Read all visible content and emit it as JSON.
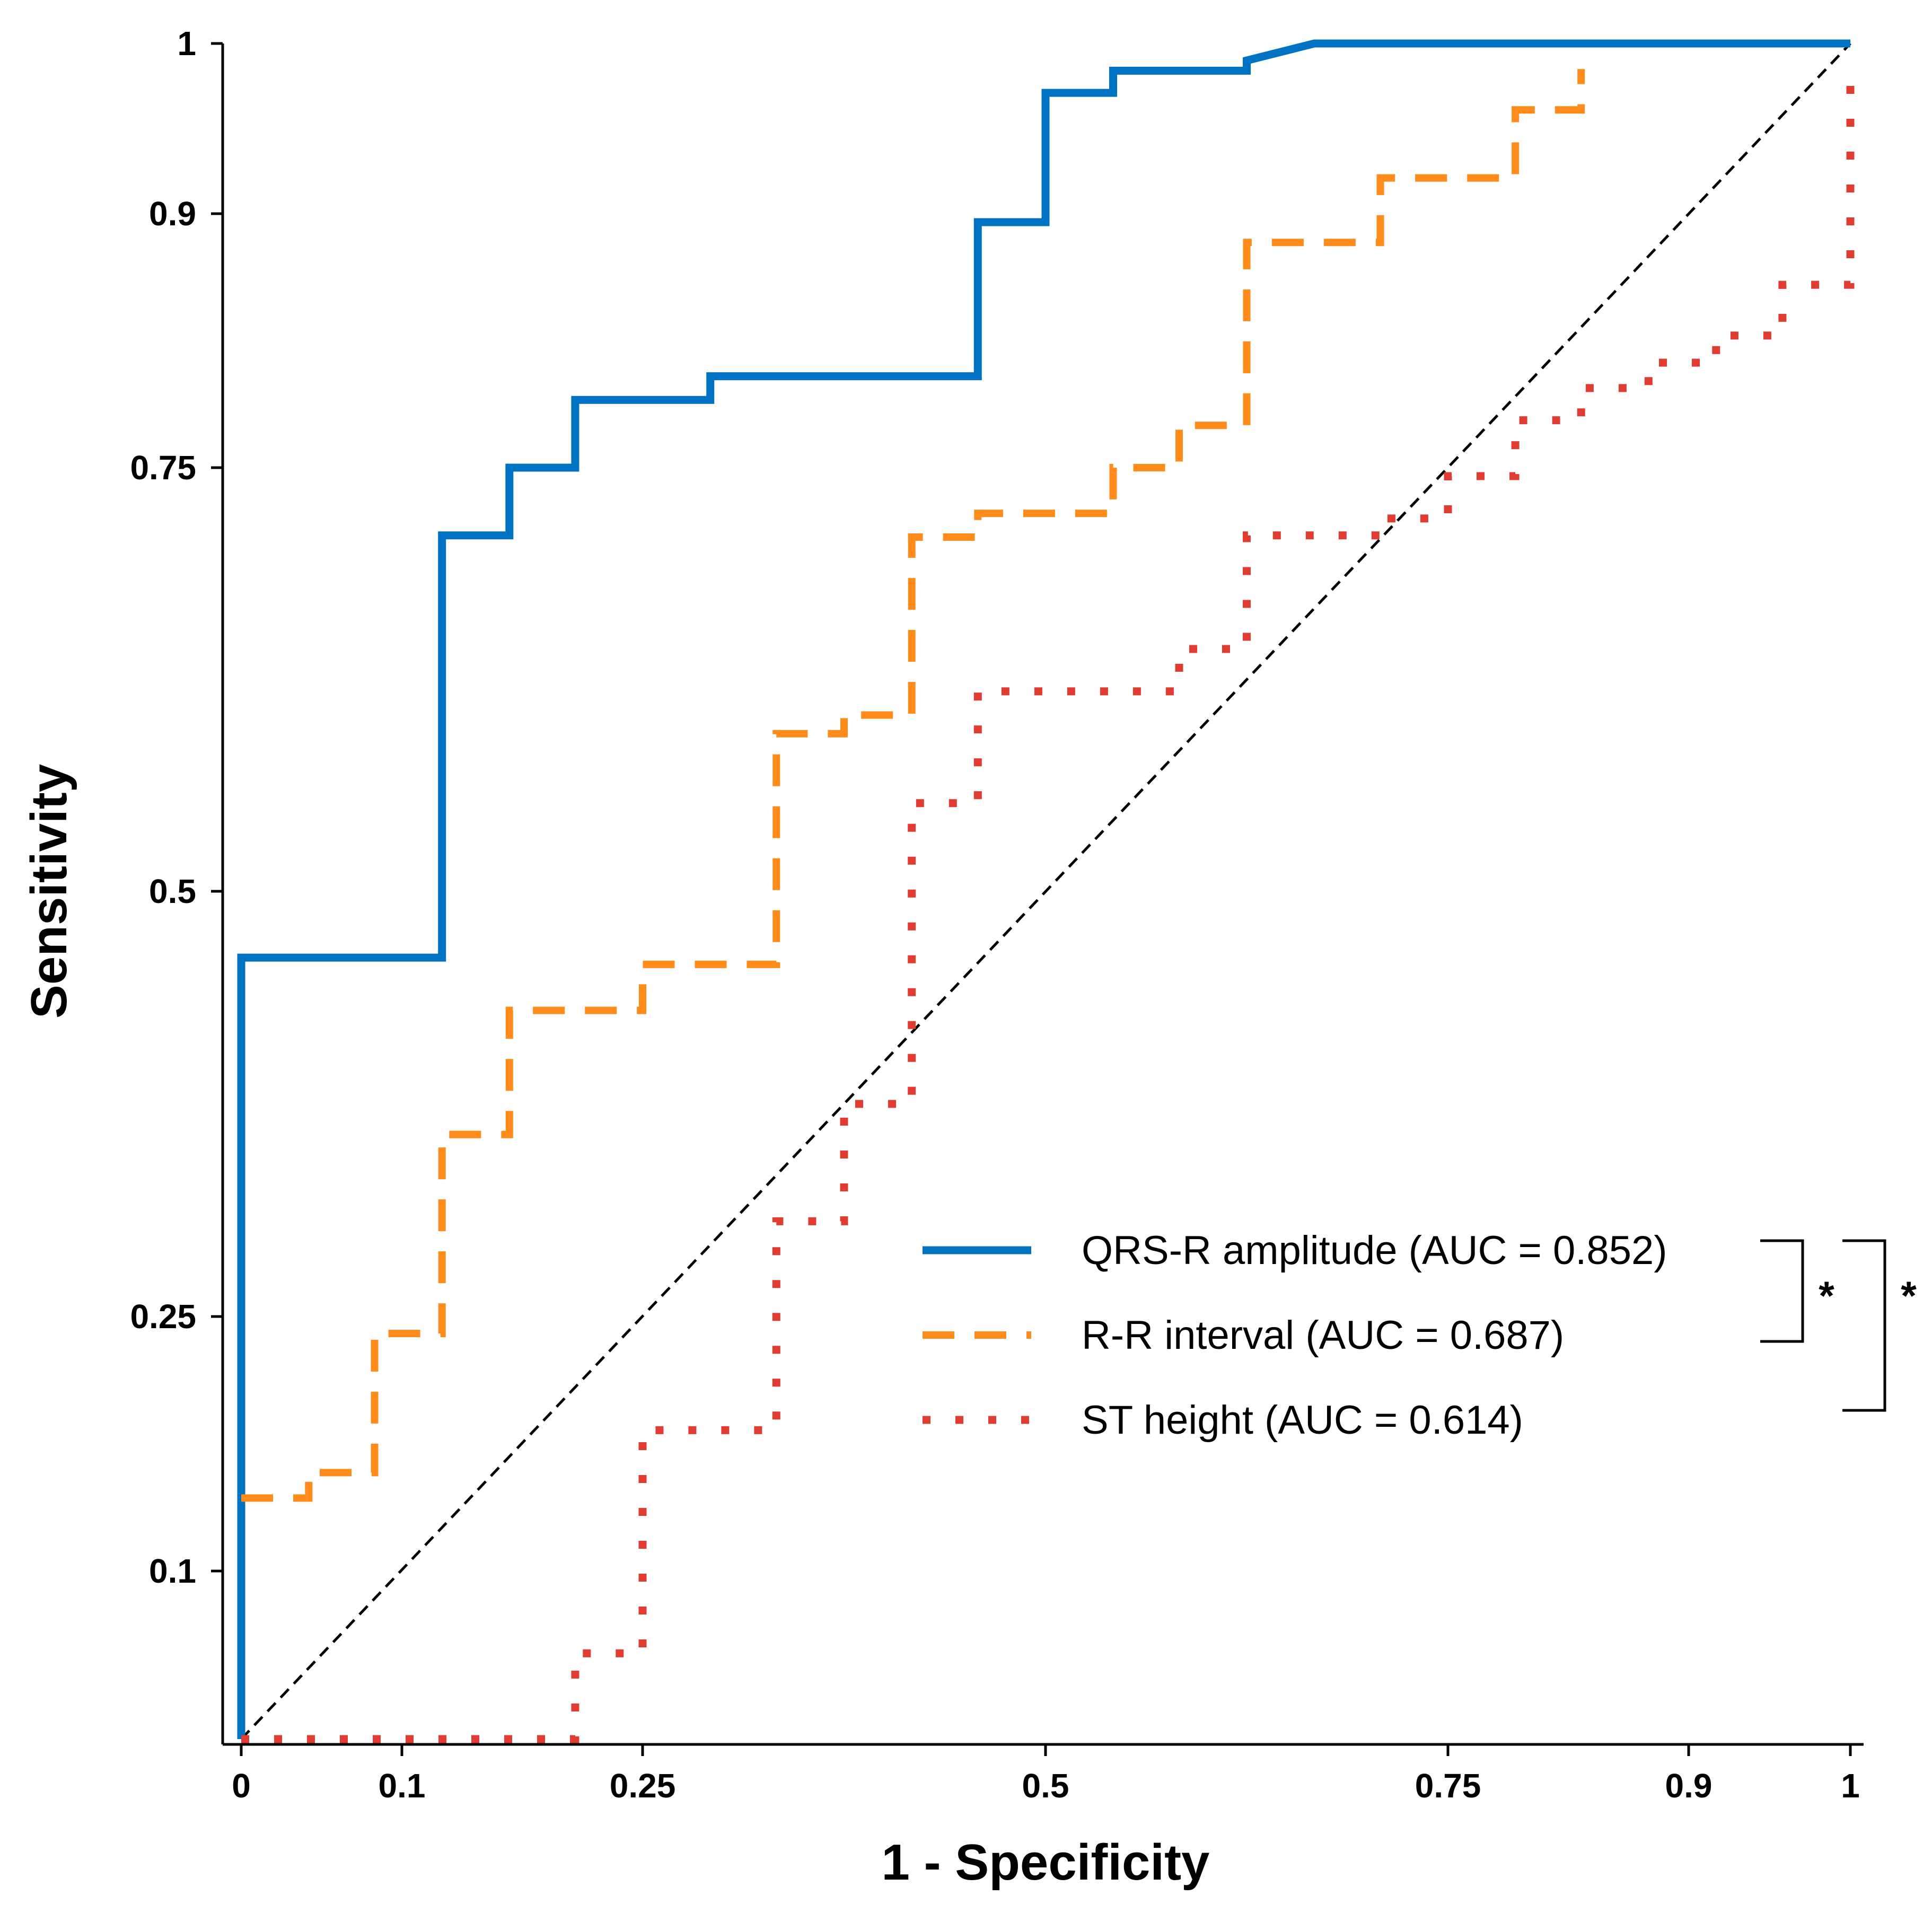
{
  "chart_data": {
    "type": "line",
    "title": "",
    "xlabel": "1 - Specificity",
    "ylabel": "Sensitivity",
    "xlim": [
      0,
      1
    ],
    "ylim": [
      0,
      1
    ],
    "xticks": [
      0,
      0.1,
      0.25,
      0.5,
      0.75,
      0.9,
      1
    ],
    "xtick_labels": [
      "0",
      "0.1",
      "0.25",
      "0.5",
      "0.75",
      "0.9",
      "1"
    ],
    "yticks": [
      0.1,
      0.25,
      0.5,
      0.75,
      0.9,
      1
    ],
    "ytick_labels": [
      "0.1",
      "0.25",
      "0.5",
      "0.75",
      "0.9",
      "1"
    ],
    "legend_position": "bottom-right",
    "series": [
      {
        "name": "QRS-R amplitude",
        "legend_label": "QRS-R amplitude",
        "auc_label": "(AUC = 0.852)",
        "auc": 0.852,
        "color": "#0072C2",
        "style": "solid",
        "points": [
          [
            0,
            0
          ],
          [
            0,
            0.461
          ],
          [
            0.125,
            0.461
          ],
          [
            0.125,
            0.71
          ],
          [
            0.167,
            0.71
          ],
          [
            0.167,
            0.75
          ],
          [
            0.208,
            0.75
          ],
          [
            0.208,
            0.79
          ],
          [
            0.292,
            0.79
          ],
          [
            0.292,
            0.804
          ],
          [
            0.458,
            0.804
          ],
          [
            0.458,
            0.895
          ],
          [
            0.5,
            0.895
          ],
          [
            0.5,
            0.971
          ],
          [
            0.542,
            0.971
          ],
          [
            0.542,
            0.984
          ],
          [
            0.625,
            0.984
          ],
          [
            0.625,
            0.99
          ],
          [
            0.667,
            1
          ],
          [
            1,
            1
          ]
        ]
      },
      {
        "name": "R-R interval",
        "legend_label": "R-R interval",
        "auc_label": "(AUC = 0.687)",
        "auc": 0.687,
        "color": "#FF8C1A",
        "style": "dashed",
        "points": [
          [
            0,
            0.143
          ],
          [
            0.042,
            0.143
          ],
          [
            0.042,
            0.158
          ],
          [
            0.083,
            0.158
          ],
          [
            0.083,
            0.24
          ],
          [
            0.125,
            0.24
          ],
          [
            0.125,
            0.357
          ],
          [
            0.167,
            0.357
          ],
          [
            0.167,
            0.43
          ],
          [
            0.25,
            0.43
          ],
          [
            0.25,
            0.457
          ],
          [
            0.333,
            0.457
          ],
          [
            0.333,
            0.593
          ],
          [
            0.375,
            0.593
          ],
          [
            0.375,
            0.604
          ],
          [
            0.417,
            0.604
          ],
          [
            0.417,
            0.709
          ],
          [
            0.458,
            0.709
          ],
          [
            0.458,
            0.723
          ],
          [
            0.5,
            0.723
          ],
          [
            0.542,
            0.723
          ],
          [
            0.542,
            0.75
          ],
          [
            0.583,
            0.75
          ],
          [
            0.583,
            0.775
          ],
          [
            0.625,
            0.775
          ],
          [
            0.625,
            0.883
          ],
          [
            0.708,
            0.883
          ],
          [
            0.708,
            0.921
          ],
          [
            0.792,
            0.921
          ],
          [
            0.792,
            0.961
          ],
          [
            0.833,
            0.961
          ],
          [
            0.833,
            0.985
          ]
        ]
      },
      {
        "name": "ST height",
        "legend_label": "ST height",
        "auc_label": "(AUC = 0.614)",
        "auc": 0.614,
        "color": "#E03C31",
        "style": "dotted",
        "points": [
          [
            0,
            0
          ],
          [
            0.208,
            0
          ],
          [
            0.208,
            0.051
          ],
          [
            0.25,
            0.051
          ],
          [
            0.25,
            0.183
          ],
          [
            0.333,
            0.183
          ],
          [
            0.333,
            0.306
          ],
          [
            0.375,
            0.306
          ],
          [
            0.375,
            0.375
          ],
          [
            0.417,
            0.375
          ],
          [
            0.417,
            0.552
          ],
          [
            0.458,
            0.552
          ],
          [
            0.458,
            0.618
          ],
          [
            0.5,
            0.618
          ],
          [
            0.583,
            0.618
          ],
          [
            0.583,
            0.643
          ],
          [
            0.625,
            0.643
          ],
          [
            0.625,
            0.71
          ],
          [
            0.708,
            0.71
          ],
          [
            0.708,
            0.72
          ],
          [
            0.75,
            0.72
          ],
          [
            0.75,
            0.745
          ],
          [
            0.792,
            0.745
          ],
          [
            0.792,
            0.778
          ],
          [
            0.833,
            0.778
          ],
          [
            0.833,
            0.797
          ],
          [
            0.875,
            0.797
          ],
          [
            0.875,
            0.812
          ],
          [
            0.917,
            0.812
          ],
          [
            0.917,
            0.828
          ],
          [
            0.958,
            0.828
          ],
          [
            0.958,
            0.858
          ],
          [
            1,
            0.858
          ],
          [
            1,
            0.984
          ]
        ]
      }
    ],
    "reference_line": {
      "from": [
        0,
        0
      ],
      "to": [
        1,
        1
      ],
      "style": "dashed",
      "color": "#000000"
    },
    "significance": [
      {
        "between": [
          "QRS-R amplitude",
          "R-R interval"
        ],
        "label": "*"
      },
      {
        "between": [
          "QRS-R amplitude",
          "ST height"
        ],
        "label": "*"
      }
    ]
  }
}
